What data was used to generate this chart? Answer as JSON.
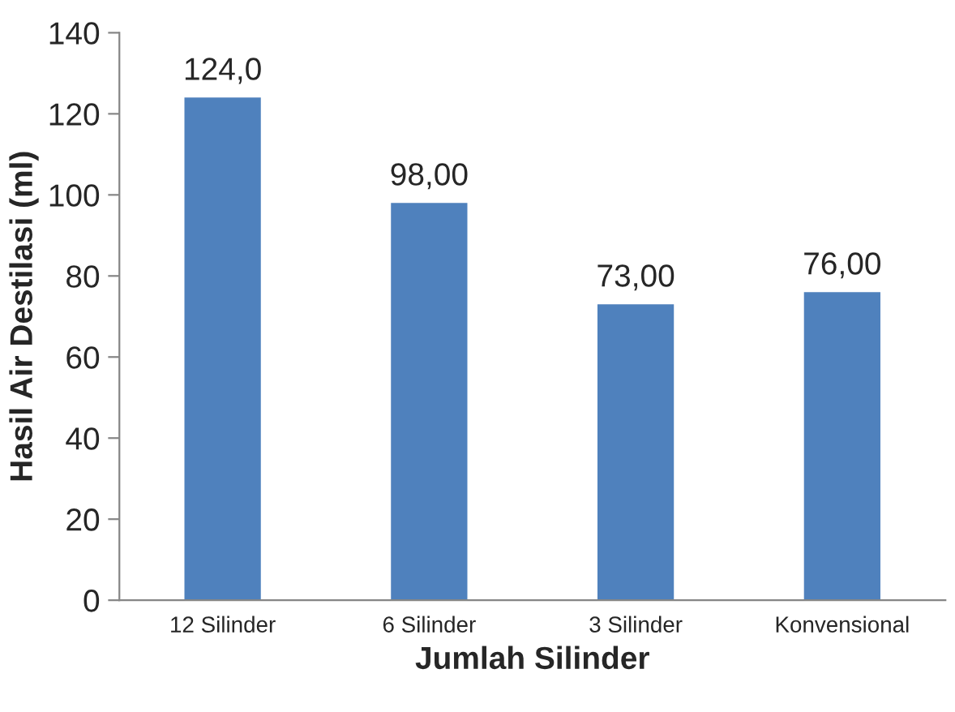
{
  "chart_data": {
    "type": "bar",
    "xlabel": "Jumlah Silinder",
    "ylabel": "Hasil Air Destilasi (ml)",
    "categories": [
      "12 Silinder",
      "6 Silinder",
      "3 Silinder",
      "Konvensional"
    ],
    "values": [
      124,
      98,
      73,
      76
    ],
    "value_labels": [
      "124,0",
      "98,00",
      "73,00",
      "76,00"
    ],
    "color": "#4f81bd",
    "ylim": [
      0,
      140
    ],
    "yticks": [
      0,
      20,
      40,
      60,
      80,
      100,
      120,
      140
    ],
    "grid": false,
    "legend": false
  }
}
